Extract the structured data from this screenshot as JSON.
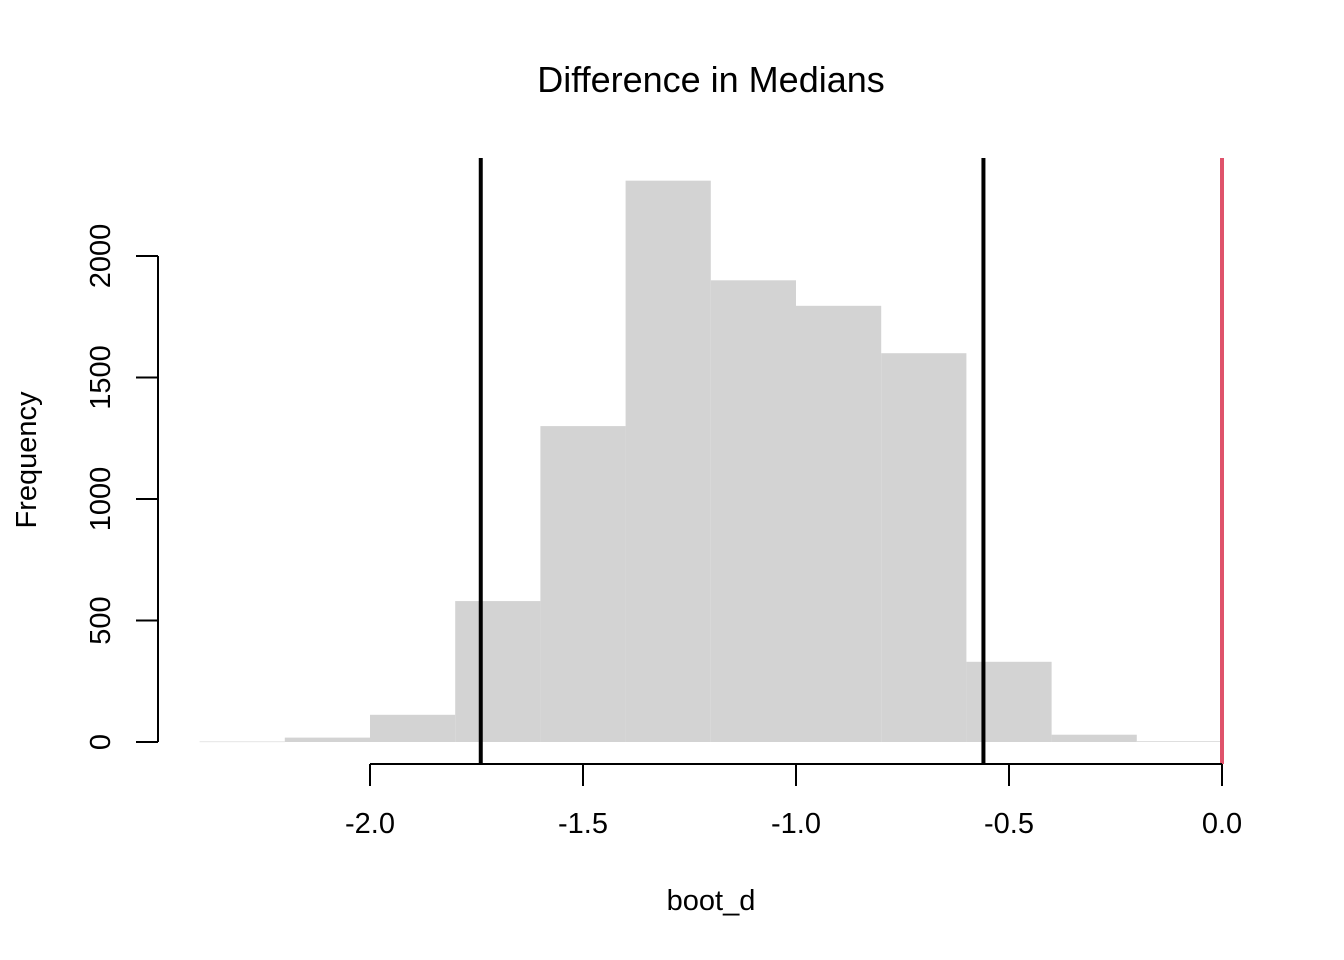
{
  "chart_data": {
    "type": "bar",
    "title": "Difference in Medians",
    "xlabel": "boot_d",
    "ylabel": "Frequency",
    "bin_edges": [
      -2.4,
      -2.2,
      -2.0,
      -1.8,
      -1.6,
      -1.4,
      -1.2,
      -1.0,
      -0.8,
      -0.6,
      -0.4,
      -0.2,
      0.0
    ],
    "values": [
      2,
      18,
      112,
      580,
      1300,
      2310,
      1900,
      1795,
      1600,
      330,
      30,
      3
    ],
    "xlim": [
      -2.4,
      0.0
    ],
    "ylim": [
      0,
      2400
    ],
    "x_ticks": [
      -2.0,
      -1.5,
      -1.0,
      -0.5,
      0.0
    ],
    "x_tick_labels": [
      "-2.0",
      "-1.5",
      "-1.0",
      "-0.5",
      "0.0"
    ],
    "y_ticks": [
      0,
      500,
      1000,
      1500,
      2000
    ],
    "y_tick_labels": [
      "0",
      "500",
      "1000",
      "1500",
      "2000"
    ],
    "vlines": [
      {
        "x": -1.74,
        "color": "#000000"
      },
      {
        "x": -0.56,
        "color": "#000000"
      },
      {
        "x": 0.0,
        "color": "#DF536B"
      }
    ],
    "bar_color": "#D3D3D3",
    "grid": false,
    "legend": "none"
  }
}
